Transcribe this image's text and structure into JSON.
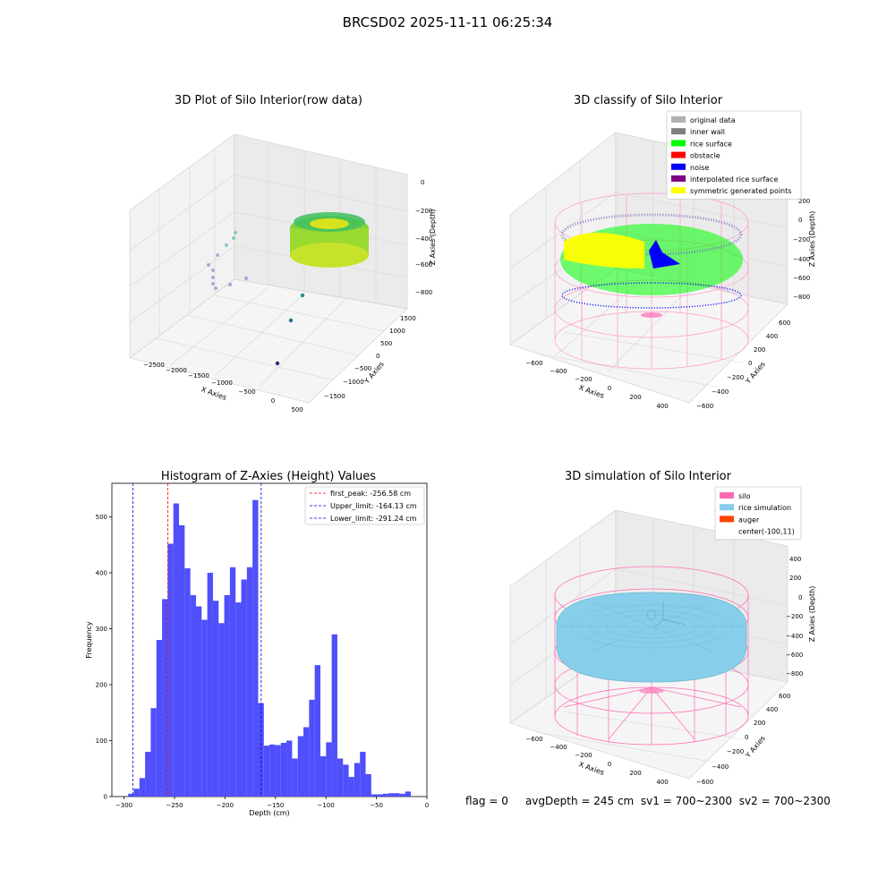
{
  "figure_title": "BRCSD02 2025-11-11 06:25:34",
  "info_line": {
    "flag": "flag = 0",
    "avg_depth": "avgDepth = 245 cm",
    "sv1": "sv1 = 700~2300",
    "sv2": "sv2 = 700~2300"
  },
  "colors": {
    "histogram_bar": "#4f4ffb",
    "first_peak": "#ff0000",
    "limits": "#0000cc",
    "silo": "#ff69b4",
    "rice_simulation": "#87ceeb",
    "auger": "#ff4500",
    "original_data": "#b0b0b0",
    "inner_wall": "#808080",
    "rice_surface": "#00ff00",
    "obstacle": "#ff0000",
    "noise": "#0000ff",
    "interpolated": "#800080",
    "symmetric": "#ffff00"
  },
  "chart_data": [
    {
      "type": "scatter",
      "title": "3D Plot of Silo Interior(row data)",
      "xlabel": "X Axies",
      "ylabel": "Y Axies",
      "zlabel": "Z Axies (Depth)",
      "x_ticks": [
        "−2500",
        "−2000",
        "−1500",
        "−1000",
        "−500",
        "0",
        "500"
      ],
      "y_ticks": [
        "−1500",
        "−1000",
        "−500",
        "0",
        "500",
        "1000",
        "1500"
      ],
      "z_ticks": [
        "0",
        "−200",
        "−400",
        "−600",
        "−800"
      ]
    },
    {
      "type": "scatter",
      "title": "3D classify of Silo Interior",
      "xlabel": "X Axies",
      "ylabel": "Y Axies",
      "zlabel": "Z Axies (Depth)",
      "x_ticks": [
        "−600",
        "−400",
        "−200",
        "0",
        "200",
        "400"
      ],
      "y_ticks": [
        "−600",
        "−400",
        "−200",
        "0",
        "200",
        "400",
        "600"
      ],
      "z_ticks": [
        "200",
        "0",
        "−200",
        "−400",
        "−600",
        "−800"
      ],
      "legend_placement": "upper-right",
      "legend": [
        {
          "label": "original data",
          "color": "#b0b0b0"
        },
        {
          "label": "inner wall",
          "color": "#808080"
        },
        {
          "label": "rice surface",
          "color": "#00ff00"
        },
        {
          "label": "obstacle",
          "color": "#ff0000"
        },
        {
          "label": "noise",
          "color": "#0000ff"
        },
        {
          "label": "interpolated rice surface",
          "color": "#800080"
        },
        {
          "label": "symmetric generated points",
          "color": "#ffff00"
        }
      ]
    },
    {
      "type": "bar",
      "title": "Histogram of Z-Axies (Height) Values",
      "xlabel": "Depth (cm)",
      "ylabel": "Frequency",
      "xlim": [
        -312,
        0
      ],
      "ylim": [
        0,
        560
      ],
      "x_ticks": [
        -300,
        -250,
        -200,
        -150,
        -100,
        -50,
        0
      ],
      "x_tick_labels": [
        "−300",
        "−250",
        "−200",
        "−150",
        "−100",
        "−50",
        "0"
      ],
      "y_ticks": [
        0,
        100,
        200,
        300,
        400,
        500
      ],
      "bin_width": 5.6,
      "bin_start": -295.9,
      "values": [
        5,
        14,
        33,
        80,
        158,
        280,
        353,
        452,
        524,
        485,
        408,
        360,
        340,
        316,
        400,
        350,
        310,
        360,
        410,
        347,
        388,
        410,
        530,
        167,
        91,
        93,
        92,
        96,
        100,
        68,
        108,
        124,
        173,
        235,
        72,
        97,
        290,
        68,
        57,
        35,
        60,
        80,
        40,
        4,
        4,
        5,
        6,
        6,
        5,
        9
      ],
      "vlines": [
        {
          "x": -256.58,
          "label": "first_peak: -256.58 cm",
          "color": "#ff0000"
        },
        {
          "x": -164.13,
          "label": "Upper_limit: -164.13 cm",
          "color": "#0000cc"
        },
        {
          "x": -291.24,
          "label": "Lower_limit: -291.24 cm",
          "color": "#0000cc"
        }
      ],
      "legend_placement": "upper-right"
    },
    {
      "type": "scatter",
      "title": "3D simulation of Silo Interior",
      "xlabel": "X Axies",
      "ylabel": "Y Axies",
      "zlabel": "Z Axies (Depth)",
      "x_ticks": [
        "−600",
        "−400",
        "−200",
        "0",
        "200",
        "400"
      ],
      "y_ticks": [
        "−600",
        "−400",
        "−200",
        "0",
        "200",
        "400",
        "600"
      ],
      "z_ticks": [
        "400",
        "200",
        "0",
        "−200",
        "−400",
        "−600",
        "−800"
      ],
      "legend_placement": "upper-right",
      "legend": [
        {
          "label": "silo",
          "color": "#ff69b4"
        },
        {
          "label": "rice simulation",
          "color": "#87ceeb"
        },
        {
          "label": "auger",
          "color": "#ff4500"
        },
        {
          "label": "center(-100,11)",
          "color": ""
        }
      ]
    }
  ]
}
